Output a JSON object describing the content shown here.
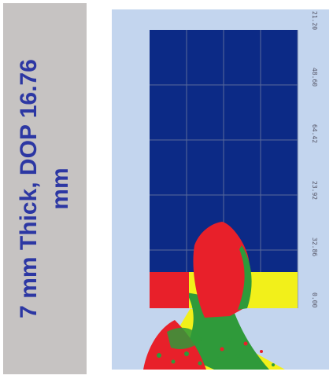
{
  "caption": {
    "line1": "7 mm Thick, DOP 16.76",
    "line2": "mm"
  },
  "colors": {
    "caption_bg": "#c6c3c2",
    "caption_text": "#2c37a3",
    "background_light_blue": "#c3d5ee",
    "target_dark_blue": "#0c2a86",
    "penetrator_red": "#e8202a",
    "yellow_zone": "#f2f01a",
    "green_zone": "#2f9a3a"
  },
  "axis_ticks": [
    "21.20",
    "48.60",
    "64.42",
    "23.92",
    "32.86",
    "0.00"
  ]
}
